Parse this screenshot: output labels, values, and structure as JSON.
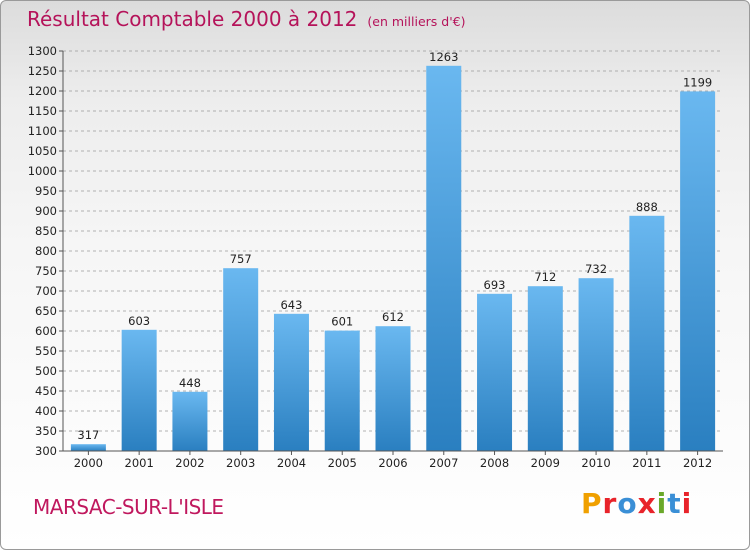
{
  "header": {
    "title": "Résultat Comptable 2000 à 2012",
    "subtitle": "(en milliers d'€)"
  },
  "footer": {
    "town": "MARSAC-SUR-L'ISLE",
    "logo_letters": [
      "P",
      "r",
      "o",
      "x",
      "i",
      "t",
      "i"
    ],
    "logo_colors": [
      "#f0a000",
      "#e8232a",
      "#3a8fd6",
      "#e8232a",
      "#6aa82a",
      "#3a8fd6",
      "#e8232a"
    ]
  },
  "colors": {
    "bar_light": "#6ab8f0",
    "bar_dark": "#2a7fc0",
    "grid": "#9b9b9b",
    "title": "#b5135a"
  },
  "chart_data": {
    "type": "bar",
    "title": "Résultat Comptable 2000 à 2012",
    "subtitle": "(en milliers d'€)",
    "xlabel": "",
    "ylabel": "",
    "categories": [
      "2000",
      "2001",
      "2002",
      "2003",
      "2004",
      "2005",
      "2006",
      "2007",
      "2008",
      "2009",
      "2010",
      "2011",
      "2012"
    ],
    "values": [
      317,
      603,
      448,
      757,
      643,
      601,
      612,
      1263,
      693,
      712,
      732,
      888,
      1199
    ],
    "ylim": [
      300,
      1300
    ],
    "ytick_step": 50,
    "grid": true,
    "grid_style": "dashed horizontal",
    "legend": "none"
  }
}
